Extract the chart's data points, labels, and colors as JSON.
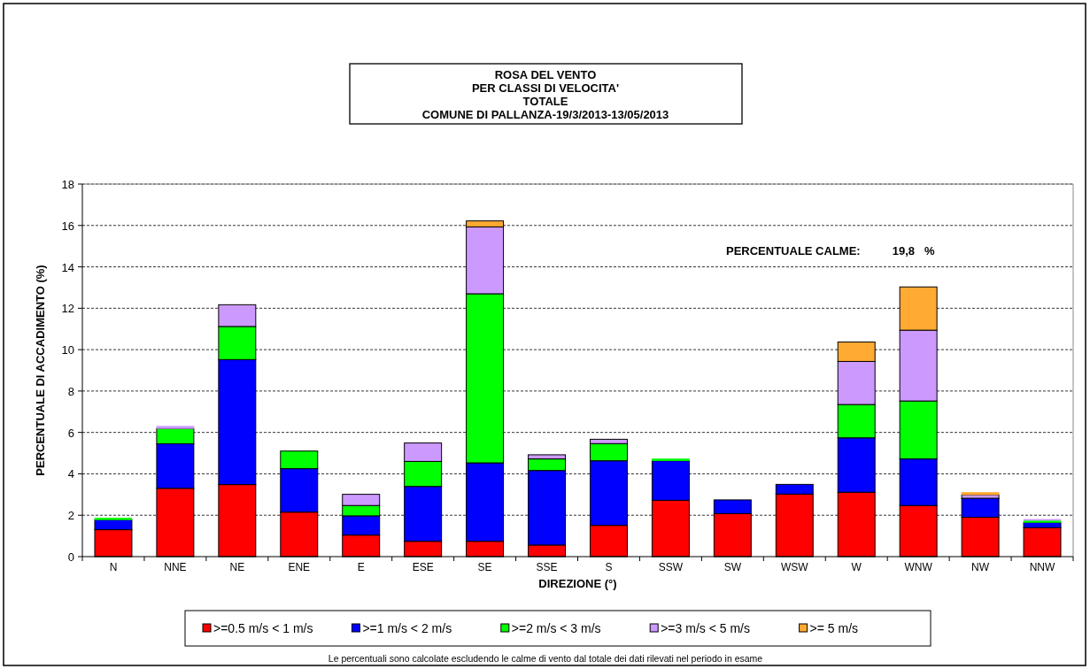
{
  "chart_data": {
    "type": "bar",
    "stacked": true,
    "title": "ROSA DEL VENTO\nPER CLASSI DI VELOCITA'\nTOTALE",
    "subtitle": "COMUNE DI PALLANZA-19/3/2013-13/05/2013",
    "xlabel": "DIREZIONE (°)",
    "ylabel": "PERCENTUALE DI ACCADIMENTO (%)",
    "categories": [
      "N",
      "NNE",
      "NE",
      "ENE",
      "E",
      "ESE",
      "SE",
      "SSE",
      "S",
      "SSW",
      "SW",
      "WSW",
      "W",
      "WNW",
      "NW",
      "NNW"
    ],
    "series": [
      {
        "name": ">=0.5 m/s < 1 m/s",
        "color": "#ff0000",
        "values": [
          1.3,
          3.3,
          3.48,
          2.15,
          1.04,
          0.74,
          0.74,
          0.56,
          1.51,
          2.72,
          2.08,
          3.02,
          3.11,
          2.47,
          1.9,
          1.4
        ]
      },
      {
        "name": ">=1 m/s < 2 m/s",
        "color": "#0000ff",
        "values": [
          0.48,
          2.15,
          6.04,
          2.1,
          0.93,
          2.65,
          3.79,
          3.6,
          3.12,
          1.91,
          0.66,
          0.47,
          2.63,
          2.25,
          0.92,
          0.25
        ]
      },
      {
        "name": ">=2 m/s < 3 m/s",
        "color": "#00ff00",
        "values": [
          0.09,
          0.74,
          1.6,
          0.85,
          0.5,
          1.21,
          8.17,
          0.56,
          0.83,
          0.1,
          0,
          0,
          1.61,
          2.8,
          0,
          0.1
        ]
      },
      {
        "name": ">=3 m/s < 5 m/s",
        "color": "#cc99ff",
        "values": [
          0,
          0.11,
          1.05,
          0,
          0.54,
          0.89,
          3.23,
          0.2,
          0.21,
          null,
          0,
          0,
          2.08,
          3.42,
          0.17,
          0.05
        ]
      },
      {
        "name": ">= 5 m/s",
        "color": "#ffaa33",
        "values": [
          0,
          0,
          0,
          0,
          0,
          0,
          0.29,
          0,
          0,
          0,
          0,
          0,
          0.94,
          2.09,
          0.12,
          0
        ]
      }
    ],
    "ylim": [
      0,
      18
    ],
    "yticks": [
      0,
      2,
      4,
      6,
      8,
      10,
      12,
      14,
      16,
      18
    ],
    "grid": "y",
    "legend": "bottom",
    "annotations": [
      "PERCENTUALE CALME:          19,8   %",
      "Le percentuali sono calcolate escludendo le calme di vento dal totale dei dati rilevati nel periodo in esame"
    ]
  }
}
